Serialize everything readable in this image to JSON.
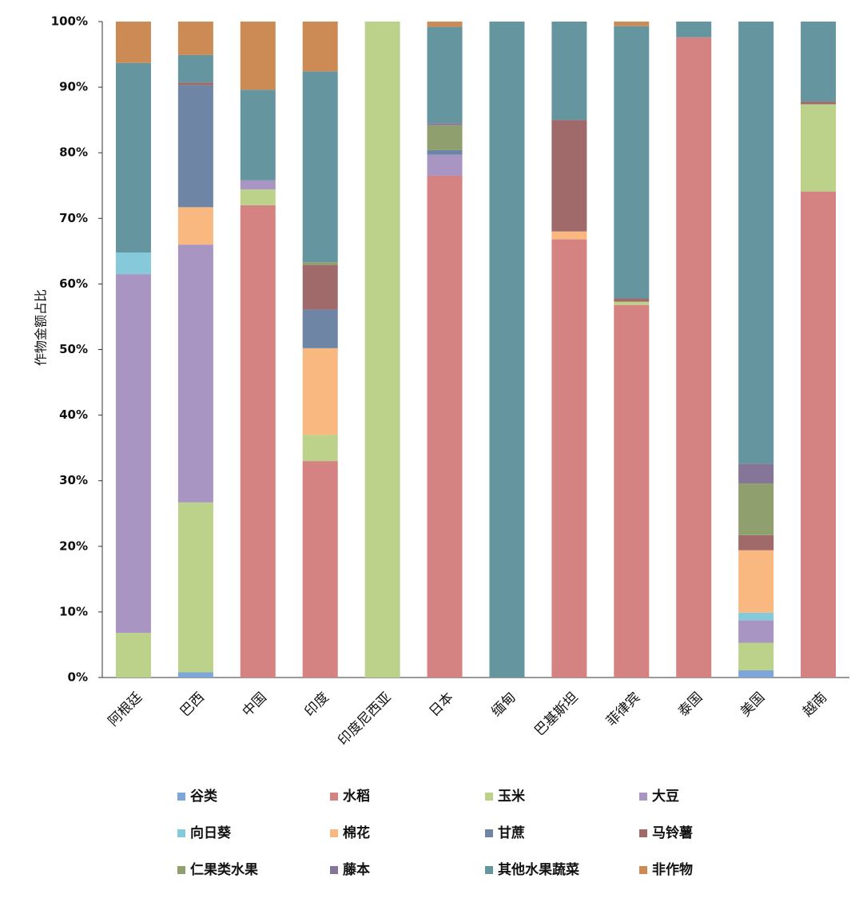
{
  "chart_data": {
    "type": "stacked_bar",
    "y_label": "作物金额占比",
    "categories": [
      "阿根廷",
      "巴西",
      "中国",
      "印度",
      "印度尼西亚",
      "日本",
      "缅甸",
      "巴基斯坦",
      "菲律宾",
      "泰国",
      "美国",
      "越南"
    ],
    "ylim": [
      0,
      100
    ],
    "yticks": [
      {
        "value": 0,
        "label": "0%"
      },
      {
        "value": 10,
        "label": "10%"
      },
      {
        "value": 20,
        "label": "20%"
      },
      {
        "value": 30,
        "label": "30%"
      },
      {
        "value": 40,
        "label": "40%"
      },
      {
        "value": 50,
        "label": "50%"
      },
      {
        "value": 60,
        "label": "60%"
      },
      {
        "value": 70,
        "label": "70%"
      },
      {
        "value": 80,
        "label": "80%"
      },
      {
        "value": 90,
        "label": "90%"
      },
      {
        "value": 100,
        "label": "100%"
      }
    ],
    "series": [
      {
        "name": "谷类",
        "color": "#7ea6d8",
        "values": [
          0,
          0.8,
          0,
          0,
          0,
          0,
          0,
          0,
          0,
          0,
          1.1,
          0
        ]
      },
      {
        "name": "水稻",
        "color": "#d48282",
        "values": [
          0,
          0,
          72.0,
          33.0,
          0,
          76.5,
          0,
          66.8,
          56.8,
          97.6,
          0,
          74.1
        ]
      },
      {
        "name": "玉米",
        "color": "#bcd18a",
        "values": [
          6.8,
          25.9,
          2.4,
          4.0,
          100,
          0,
          0,
          0,
          0.5,
          0,
          4.2,
          13.3
        ]
      },
      {
        "name": "大豆",
        "color": "#a895c2",
        "values": [
          54.7,
          39.3,
          1.4,
          0,
          0,
          3.2,
          0,
          0,
          0,
          0,
          3.4,
          0
        ]
      },
      {
        "name": "向日葵",
        "color": "#86c9da",
        "values": [
          3.3,
          0,
          0,
          0,
          0,
          0,
          0,
          0,
          0,
          0,
          1.2,
          0
        ]
      },
      {
        "name": "棉花",
        "color": "#f9b880",
        "values": [
          0,
          5.7,
          0,
          13.2,
          0,
          0,
          0,
          1.2,
          0,
          0,
          9.5,
          0
        ]
      },
      {
        "name": "甘蔗",
        "color": "#6f85a6",
        "values": [
          0,
          18.6,
          0,
          5.9,
          0,
          0.7,
          0,
          0,
          0,
          0,
          0,
          0
        ]
      },
      {
        "name": "马铃薯",
        "color": "#a0696a",
        "values": [
          0,
          0.4,
          0,
          6.8,
          0,
          0,
          0,
          17.0,
          0.5,
          0,
          2.3,
          0.4
        ]
      },
      {
        "name": "仁果类水果",
        "color": "#8fa06e",
        "values": [
          0,
          0,
          0,
          0.4,
          0,
          3.8,
          0,
          0,
          0,
          0,
          7.9,
          0
        ]
      },
      {
        "name": "藤本",
        "color": "#857699",
        "values": [
          0,
          0,
          0,
          0,
          0,
          0.3,
          0,
          0,
          0,
          0,
          3.0,
          0
        ]
      },
      {
        "name": "其他水果蔬菜",
        "color": "#6596a0",
        "values": [
          28.9,
          4.2,
          13.8,
          29.1,
          0,
          14.7,
          100,
          15.0,
          41.5,
          2.4,
          67.4,
          12.2
        ]
      },
      {
        "name": "非作物",
        "color": "#cc8b55",
        "values": [
          6.3,
          5.1,
          10.4,
          7.6,
          0,
          0.8,
          0,
          0,
          0.7,
          0,
          0,
          0
        ]
      }
    ]
  }
}
